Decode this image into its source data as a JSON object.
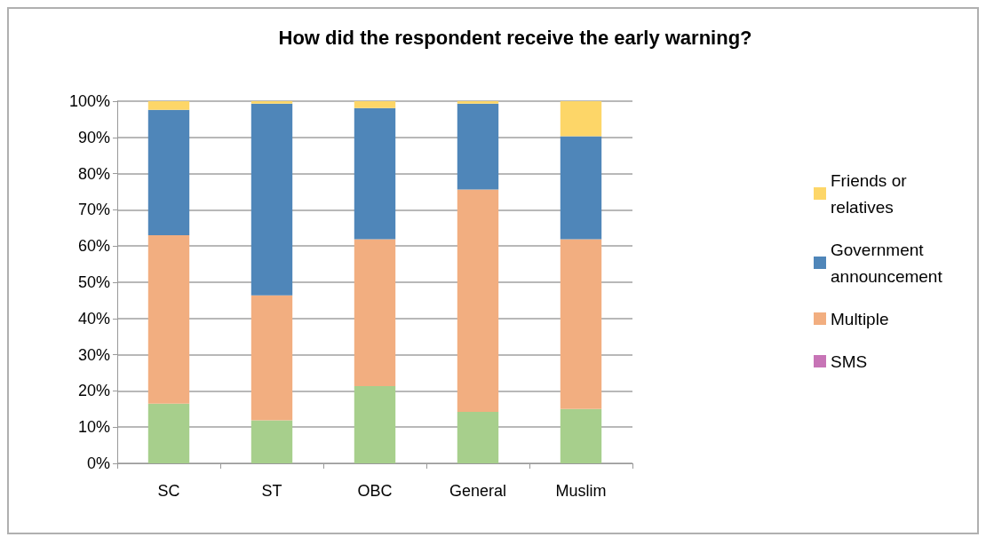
{
  "chart_data": {
    "type": "bar",
    "title": "How did the respondent receive the early warning?",
    "categories": [
      "SC",
      "ST",
      "OBC",
      "General",
      "Muslim"
    ],
    "stacked": true,
    "series": [
      {
        "name": "SMS",
        "color": "#c774b6",
        "values": [
          0,
          0,
          0,
          0,
          0
        ]
      },
      {
        "color": "#a7cf8c",
        "values": [
          16.5,
          11.9,
          21.3,
          14.2,
          15.0
        ]
      },
      {
        "name": "Multiple",
        "color": "#f2ae80",
        "values": [
          46.5,
          34.5,
          40.6,
          61.4,
          46.9
        ]
      },
      {
        "name": "Government announcement",
        "color": "#4f86b9",
        "values": [
          34.6,
          52.9,
          36.2,
          23.7,
          28.4
        ]
      },
      {
        "name": "Friends or relatives",
        "color": "#fdd668",
        "values": [
          2.4,
          0.7,
          1.9,
          0.7,
          9.7
        ]
      }
    ],
    "ylim": [
      0,
      100
    ],
    "yticks": [
      {
        "value": 0,
        "label": "0%"
      },
      {
        "value": 10,
        "label": "10%"
      },
      {
        "value": 20,
        "label": "20%"
      },
      {
        "value": 30,
        "label": "30%"
      },
      {
        "value": 40,
        "label": "40%"
      },
      {
        "value": 50,
        "label": "50%"
      },
      {
        "value": 60,
        "label": "60%"
      },
      {
        "value": 70,
        "label": "70%"
      },
      {
        "value": 80,
        "label": "80%"
      },
      {
        "value": 90,
        "label": "90%"
      },
      {
        "value": 100,
        "label": "100%"
      }
    ],
    "grid": "y",
    "legend": "right"
  }
}
